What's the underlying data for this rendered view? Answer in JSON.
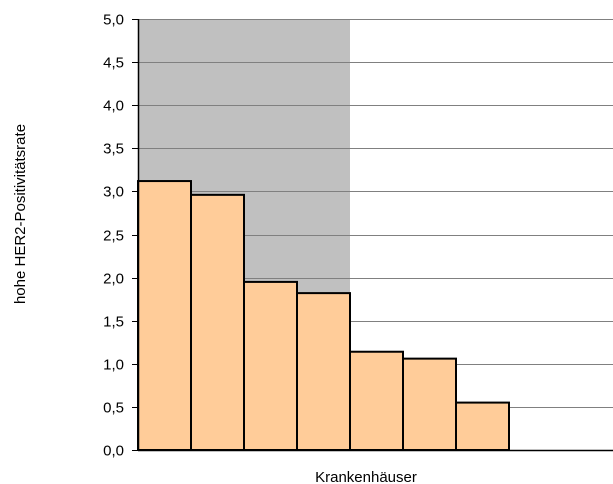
{
  "chart_data": {
    "type": "bar",
    "title": "",
    "xlabel": "Krankenhäuser",
    "ylabel": "hohe HER2-Positivitätsrate",
    "ylim": [
      0,
      5
    ],
    "yticks": [
      "0,0",
      "0,5",
      "1,0",
      "1,5",
      "2,0",
      "2,5",
      "3,0",
      "3,5",
      "4,0",
      "4,5",
      "5,0"
    ],
    "grid": true,
    "values": [
      3.12,
      2.96,
      1.95,
      1.82,
      1.14,
      1.06,
      0.55
    ],
    "shaded_region": {
      "from_bar": 0,
      "to_bar": 3,
      "color": "#c0c0c0"
    },
    "colors": {
      "bar_fill": "#ffcc99",
      "bar_stroke": "#000000",
      "grid": "#808080"
    }
  }
}
